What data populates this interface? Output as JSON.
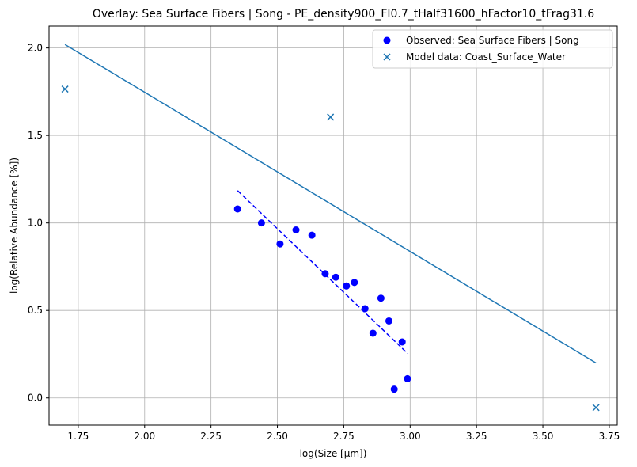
{
  "chart_data": {
    "type": "scatter",
    "title": "Overlay: Sea Surface Fibers | Song - PE_density900_FI0.7_tHalf31600_hFactor10_tFrag31.6",
    "xlabel": "log(Size [μm])",
    "ylabel": "log(Relative Abundance [%])",
    "xlim": [
      1.64,
      3.78
    ],
    "ylim": [
      -0.155,
      2.125
    ],
    "grid": true,
    "legend_position": "top-right",
    "x_ticks": [
      1.75,
      2.0,
      2.25,
      2.5,
      2.75,
      3.0,
      3.25,
      3.5,
      3.75
    ],
    "x_tick_labels": [
      "1.75",
      "2.00",
      "2.25",
      "2.50",
      "2.75",
      "3.00",
      "3.25",
      "3.50",
      "3.75"
    ],
    "y_ticks": [
      0.0,
      0.5,
      1.0,
      1.5,
      2.0
    ],
    "y_tick_labels": [
      "0.0",
      "0.5",
      "1.0",
      "1.5",
      "2.0"
    ],
    "series": [
      {
        "name": "Observed: Sea Surface Fibers | Song",
        "kind": "scatter",
        "marker": "circle",
        "color": "#0000ff",
        "points": [
          [
            2.35,
            1.08
          ],
          [
            2.44,
            1.0
          ],
          [
            2.51,
            0.88
          ],
          [
            2.57,
            0.96
          ],
          [
            2.63,
            0.93
          ],
          [
            2.68,
            0.71
          ],
          [
            2.72,
            0.69
          ],
          [
            2.76,
            0.64
          ],
          [
            2.79,
            0.66
          ],
          [
            2.83,
            0.51
          ],
          [
            2.86,
            0.37
          ],
          [
            2.89,
            0.57
          ],
          [
            2.92,
            0.44
          ],
          [
            2.97,
            0.32
          ],
          [
            2.94,
            0.05
          ],
          [
            2.99,
            0.11
          ]
        ]
      },
      {
        "kind": "fit-line",
        "style": "dashed",
        "color": "#0000ff",
        "points": [
          [
            2.35,
            1.185
          ],
          [
            2.99,
            0.255
          ]
        ]
      },
      {
        "name": "Model data: Coast_Surface_Water",
        "kind": "scatter",
        "marker": "x",
        "color": "#1f77b4",
        "points": [
          [
            1.7,
            1.765
          ],
          [
            2.7,
            1.605
          ],
          [
            3.7,
            -0.055
          ]
        ]
      },
      {
        "kind": "line",
        "style": "solid",
        "color": "#1f77b4",
        "points": [
          [
            1.7,
            2.02
          ],
          [
            3.7,
            0.2
          ]
        ]
      }
    ]
  }
}
